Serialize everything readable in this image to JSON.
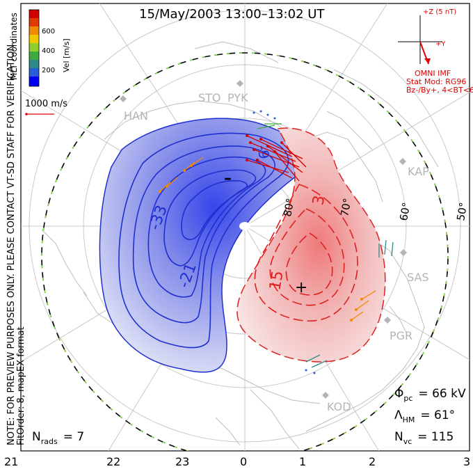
{
  "title": "15/May/2003 13:00–13:02 UT",
  "side_note": "NOTE: FOR PREVIEW PURPOSES ONLY. PLEASE CONTACT VT-SD STAFF FOR VERIFICATION.",
  "fit_note": "FitOrder: 8, mapEX format",
  "colorbar": {
    "label_coords": "MLT coordinates",
    "label_vel": "Vel [m/s]",
    "ticks": [
      "600",
      "400",
      "200"
    ],
    "colors": [
      "#0000f0",
      "#2a5bd8",
      "#2e8a8a",
      "#3fa83f",
      "#8ecf2a",
      "#f0c800",
      "#f08a00",
      "#e03a00",
      "#d00000"
    ]
  },
  "scale_vector": {
    "label": "1000 m/s",
    "color": "#e00000"
  },
  "imf": {
    "z_label": "+Z (5 nT)",
    "y_label": "+Y",
    "source": "OMNI IMF",
    "model_line1": "Stat Mod: RG96",
    "model_line2": "Bz-/By+, 4<BT<6",
    "color": "#e00000",
    "vector_angle_deg": 160
  },
  "stations": [
    "STO",
    "PYK",
    "HAN",
    "KAP",
    "SAS",
    "PGR",
    "KOD"
  ],
  "lat_labels": [
    "80°",
    "70°",
    "60°",
    "50°"
  ],
  "contours": {
    "negative_labels": [
      "-33",
      "-21",
      "-9"
    ],
    "positive_labels": [
      "15",
      "3"
    ],
    "min_marker": "–",
    "max_marker": "+"
  },
  "stats": {
    "phi_label": "Φ",
    "phi_sub": "pc",
    "phi_value": "= 66 kV",
    "lambda_label": "Λ",
    "lambda_sub": "HM",
    "lambda_value": "= 61°",
    "nvc_label": "N",
    "nvc_sub": "vc",
    "nvc_value": "= 115",
    "nrads_label": "N",
    "nrads_sub": "rads",
    "nrads_value": "= 7"
  },
  "mlt_ticks": [
    "21",
    "22",
    "23",
    "0",
    "1",
    "2",
    "3"
  ],
  "colors": {
    "negative": "#1e2fd0",
    "positive": "#e02020",
    "boundary_green": "#88dd44",
    "grid": "#c8c8c8"
  }
}
